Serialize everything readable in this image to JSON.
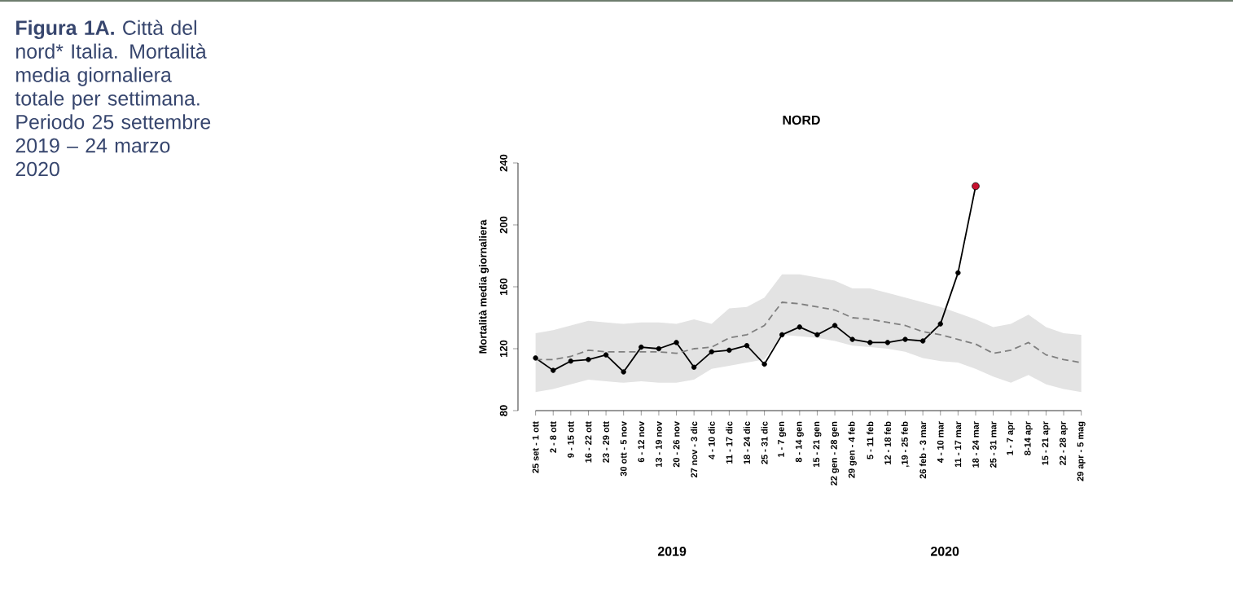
{
  "chart_data": {
    "type": "line",
    "title": "NORD",
    "ylabel": "Mortalità media giornaliera",
    "annotations": [
      "**Figura 1A.** Città del nord* Italia. Mortalità media giornaliera totale per settimana. Periodo 25 settembre 2019 – 24 marzo 2020",
      "2019",
      "2020"
    ],
    "categories": [
      "25 set - 1 ott",
      "2 - 8 ott",
      "9 - 15 ott",
      "16 - 22 ott",
      "23 - 29 ott",
      "30 ott - 5 nov",
      "6 - 12 nov",
      "13 - 19 nov",
      "20 - 26 nov",
      "27 nov - 3 dic",
      "4 - 10 dic",
      "11 - 17 dic",
      "18 - 24 dic",
      "25 - 31 dic",
      "1 - 7 gen",
      "8 - 14 gen",
      "15 - 21 gen",
      "22 gen - 28 gen",
      "29 gen - 4 feb",
      "5 - 11 feb",
      "12 - 18 feb",
      ",19 - 25 feb",
      "26 feb - 3 mar",
      "4 - 10 mar",
      "11 - 17 mar",
      "18 - 24 mar",
      "25 - 31 mar",
      "1 - 7 apr",
      "8-14 apr",
      "15 - 21 apr",
      "22 - 28 apr",
      "29 apr - 5 mag"
    ],
    "series": [
      {
        "color": "#000000",
        "marker": "circle",
        "line_style": "solid",
        "values": [
          114,
          106,
          112,
          113,
          116,
          105,
          121,
          120,
          124,
          108,
          118,
          119,
          122,
          110,
          129,
          134,
          129,
          135,
          126,
          124,
          124,
          126,
          125,
          136,
          169,
          225,
          null,
          null,
          null,
          null,
          null,
          null
        ],
        "colors": [
          "#000000",
          "#000000",
          "#000000",
          "#000000",
          "#000000",
          "#000000",
          "#000000",
          "#000000",
          "#000000",
          "#000000",
          "#000000",
          "#000000",
          "#000000",
          "#000000",
          "#000000",
          "#000000",
          "#000000",
          "#000000",
          "#000000",
          "#000000",
          "#000000",
          "#000000",
          "#000000",
          "#000000",
          "#000000",
          "#c8102e",
          null,
          null,
          null,
          null,
          null,
          null
        ]
      },
      {
        "color": "#7f7f7f",
        "marker": "none",
        "line_style": "dashed",
        "values": [
          113,
          113,
          115,
          119,
          118,
          118,
          118,
          118,
          117,
          120,
          121,
          127,
          129,
          135,
          150,
          149,
          147,
          145,
          140,
          139,
          137,
          135,
          131,
          129,
          126,
          123,
          117,
          119,
          124,
          116,
          113,
          111
        ],
        "lower": [
          92,
          94,
          97,
          100,
          99,
          98,
          99,
          98,
          98,
          100,
          107,
          109,
          111,
          113,
          129,
          128,
          127,
          125,
          122,
          121,
          120,
          118,
          114,
          112,
          111,
          107,
          102,
          98,
          103,
          97,
          94,
          92
        ],
        "upper": [
          130,
          132,
          135,
          138,
          137,
          136,
          137,
          137,
          136,
          139,
          136,
          146,
          147,
          153,
          168,
          168,
          166,
          164,
          159,
          159,
          156,
          153,
          150,
          147,
          143,
          139,
          134,
          136,
          142,
          134,
          130,
          129
        ]
      }
    ],
    "ylim": [
      80,
      240
    ],
    "yticks": [
      80,
      120,
      160,
      200,
      240
    ]
  }
}
